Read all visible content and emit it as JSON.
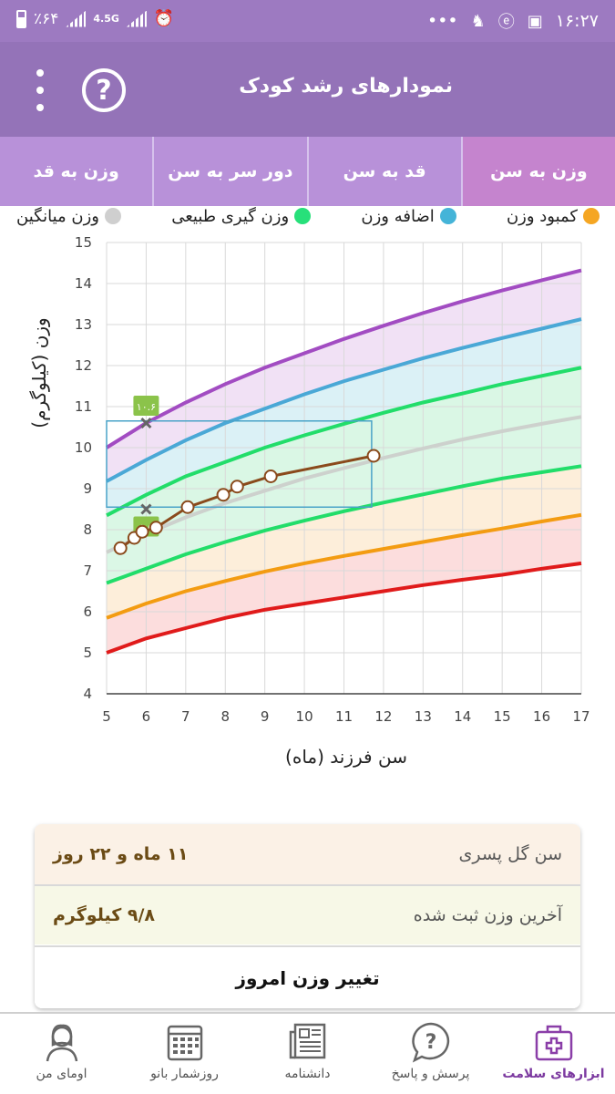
{
  "status_bar": {
    "battery": "٪۶۴",
    "network": "4.5G",
    "time": "۱۶:۲۷",
    "icons": [
      "battery-icon",
      "signal-icon",
      "alarm-icon",
      "more-icon",
      "notification-icon",
      "browser-icon",
      "gallery-icon"
    ]
  },
  "app_bar": {
    "title": "نمودارهای رشد کودک",
    "help_glyph": "?"
  },
  "tabs": [
    {
      "label": "وزن به قد",
      "active": false
    },
    {
      "label": "دور سر به سن",
      "active": false
    },
    {
      "label": "قد به سن",
      "active": false
    },
    {
      "label": "وزن به سن",
      "active": true
    }
  ],
  "legend": [
    {
      "label": "کمبود وزن",
      "color": "#f5a623"
    },
    {
      "label": "اضافه وزن",
      "color": "#45b4d8"
    },
    {
      "label": "وزن گیری طبیعی",
      "color": "#27e07a"
    },
    {
      "label": "وزن میانگین",
      "color": "#cfcfcf"
    }
  ],
  "chart_data": {
    "type": "line",
    "xlabel": "سن فرزند (ماه)",
    "ylabel": "وزن (کیلوگرم)",
    "xlim": [
      5,
      17
    ],
    "ylim": [
      4,
      15
    ],
    "x_ticks": [
      5,
      6,
      7,
      8,
      9,
      10,
      11,
      12,
      13,
      14,
      15,
      16,
      17
    ],
    "y_ticks": [
      4,
      5,
      6,
      7,
      8,
      9,
      10,
      11,
      12,
      13,
      14,
      15
    ],
    "grid": true,
    "curves": [
      {
        "color": "#e01b1b",
        "fill": "#fbd7d7",
        "points": [
          [
            5,
            5.0
          ],
          [
            6,
            5.35
          ],
          [
            7,
            5.6
          ],
          [
            8,
            5.85
          ],
          [
            9,
            6.05
          ],
          [
            10,
            6.2
          ],
          [
            11,
            6.35
          ],
          [
            12,
            6.5
          ],
          [
            13,
            6.65
          ],
          [
            14,
            6.78
          ],
          [
            15,
            6.9
          ],
          [
            16,
            7.05
          ],
          [
            17,
            7.18
          ]
        ]
      },
      {
        "color": "#f39c12",
        "fill": "#fdebd3",
        "points": [
          [
            5,
            5.85
          ],
          [
            6,
            6.2
          ],
          [
            7,
            6.5
          ],
          [
            8,
            6.75
          ],
          [
            9,
            6.98
          ],
          [
            10,
            7.18
          ],
          [
            11,
            7.36
          ],
          [
            12,
            7.53
          ],
          [
            13,
            7.7
          ],
          [
            14,
            7.87
          ],
          [
            15,
            8.03
          ],
          [
            16,
            8.2
          ],
          [
            17,
            8.36
          ]
        ]
      },
      {
        "color": "#22dd6a",
        "fill": "#d5f6e2",
        "points": [
          [
            5,
            6.7
          ],
          [
            6,
            7.05
          ],
          [
            7,
            7.4
          ],
          [
            8,
            7.7
          ],
          [
            9,
            7.98
          ],
          [
            10,
            8.22
          ],
          [
            11,
            8.45
          ],
          [
            12,
            8.66
          ],
          [
            13,
            8.86
          ],
          [
            14,
            9.06
          ],
          [
            15,
            9.25
          ],
          [
            16,
            9.4
          ],
          [
            17,
            9.55
          ]
        ]
      },
      {
        "color": "#cdd1cd",
        "fill": "#d3f6e1",
        "points": [
          [
            5,
            7.45
          ],
          [
            6,
            7.9
          ],
          [
            7,
            8.3
          ],
          [
            8,
            8.65
          ],
          [
            9,
            8.95
          ],
          [
            10,
            9.25
          ],
          [
            11,
            9.5
          ],
          [
            12,
            9.75
          ],
          [
            13,
            9.98
          ],
          [
            14,
            10.2
          ],
          [
            15,
            10.4
          ],
          [
            16,
            10.58
          ],
          [
            17,
            10.75
          ]
        ]
      },
      {
        "color": "#22dd6a",
        "fill": "#d5eef5",
        "points": [
          [
            5,
            8.35
          ],
          [
            6,
            8.85
          ],
          [
            7,
            9.3
          ],
          [
            8,
            9.65
          ],
          [
            9,
            10.0
          ],
          [
            10,
            10.3
          ],
          [
            11,
            10.58
          ],
          [
            12,
            10.85
          ],
          [
            13,
            11.1
          ],
          [
            14,
            11.32
          ],
          [
            15,
            11.55
          ],
          [
            16,
            11.75
          ],
          [
            17,
            11.95
          ]
        ]
      },
      {
        "color": "#4aa8d6",
        "fill": "#eedcf3",
        "points": [
          [
            5,
            9.18
          ],
          [
            6,
            9.7
          ],
          [
            7,
            10.18
          ],
          [
            8,
            10.6
          ],
          [
            9,
            10.95
          ],
          [
            10,
            11.3
          ],
          [
            11,
            11.62
          ],
          [
            12,
            11.9
          ],
          [
            13,
            12.18
          ],
          [
            14,
            12.43
          ],
          [
            15,
            12.67
          ],
          [
            16,
            12.9
          ],
          [
            17,
            13.13
          ]
        ]
      },
      {
        "color": "#a24cc2",
        "fill": null,
        "points": [
          [
            5,
            10.0
          ],
          [
            6,
            10.6
          ],
          [
            7,
            11.1
          ],
          [
            8,
            11.55
          ],
          [
            9,
            11.95
          ],
          [
            10,
            12.3
          ],
          [
            11,
            12.65
          ],
          [
            12,
            12.97
          ],
          [
            13,
            13.28
          ],
          [
            14,
            13.57
          ],
          [
            15,
            13.83
          ],
          [
            16,
            14.08
          ],
          [
            17,
            14.32
          ]
        ]
      }
    ],
    "series": [
      {
        "color": "#8a4a1c",
        "values": [
          [
            5.35,
            7.55
          ],
          [
            5.7,
            7.8
          ],
          [
            5.9,
            7.95
          ],
          [
            6.25,
            8.05
          ],
          [
            7.05,
            8.55
          ],
          [
            7.95,
            8.85
          ],
          [
            8.3,
            9.05
          ],
          [
            9.15,
            9.3
          ],
          [
            11.75,
            9.8
          ]
        ]
      }
    ],
    "range_box": {
      "x": [
        5,
        11.7
      ],
      "y": [
        8.55,
        10.65
      ],
      "color": "#4aa3c8"
    },
    "markers": [
      {
        "x": 6,
        "y": 10.6,
        "label": "۱۰.۶"
      },
      {
        "x": 6,
        "y": 8.5,
        "label": "۸.۵"
      }
    ]
  },
  "info_card": {
    "age_label": "سن گل پسری",
    "age_value": "۱۱ ماه و ۲۲ روز",
    "weight_label": "آخرین وزن ثبت شده",
    "weight_value": "۹/۸ کیلوگرم",
    "action_label": "تغییر وزن امروز"
  },
  "bottom_nav": [
    {
      "label": "اومای من",
      "icon": "woman-icon",
      "active": false
    },
    {
      "label": "روزشمار بانو",
      "icon": "calendar-icon",
      "active": false
    },
    {
      "label": "دانشنامه",
      "icon": "newspaper-icon",
      "active": false
    },
    {
      "label": "پرسش و پاسخ",
      "icon": "question-bubble-icon",
      "active": false
    },
    {
      "label": "ابزارهای سلامت",
      "icon": "medical-kit-icon",
      "active": true
    }
  ]
}
